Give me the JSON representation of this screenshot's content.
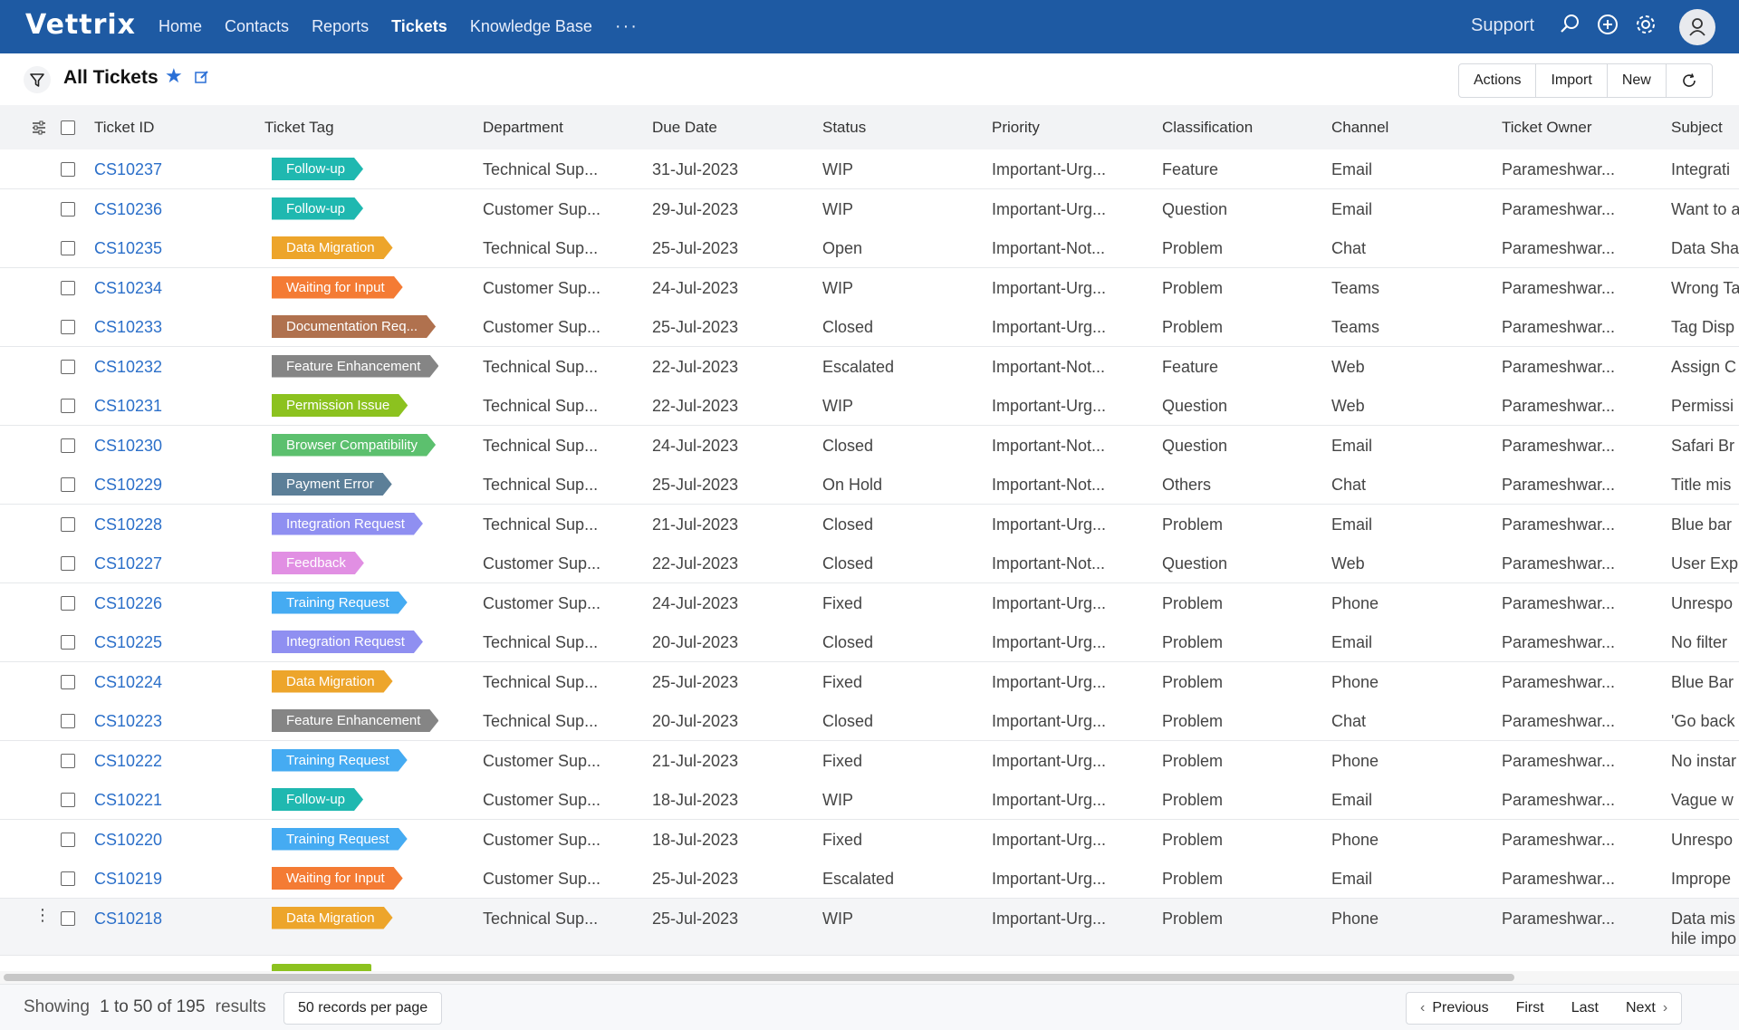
{
  "app": {
    "logo": "Vettrix",
    "support_label": "Support"
  },
  "nav": {
    "items": [
      "Home",
      "Contacts",
      "Reports",
      "Tickets",
      "Knowledge Base"
    ],
    "more": "···",
    "active": "Tickets"
  },
  "view": {
    "title": "All Tickets"
  },
  "toolbar": {
    "actions": "Actions",
    "import": "Import",
    "new": "New"
  },
  "columns": [
    "Ticket ID",
    "Ticket Tag",
    "Department",
    "Due Date",
    "Status",
    "Priority",
    "Classification",
    "Channel",
    "Ticket Owner",
    "Subject"
  ],
  "colors": {
    "Follow-up": "#1fb8b0",
    "Data Migration": "#eda52b",
    "Waiting for Input": "#f47b34",
    "Documentation Req...": "#b0714e",
    "Feature Enhancement": "#858585",
    "Permission Issue": "#8cc21f",
    "Browser Compatibility": "#5cc06e",
    "Payment Error": "#5c7f98",
    "Integration Request": "#8f8ff1",
    "Feedback": "#e18fe3",
    "Training Request": "#45abf2"
  },
  "rows": [
    {
      "id": "CS10237",
      "tag": "Follow-up",
      "dept": "Technical Sup...",
      "due": "31-Jul-2023",
      "status": "WIP",
      "priority": "Important-Urg...",
      "cls": "Feature",
      "channel": "Email",
      "owner": "Parameshwar...",
      "subject": "Integrati"
    },
    {
      "id": "CS10236",
      "tag": "Follow-up",
      "dept": "Customer Sup...",
      "due": "29-Jul-2023",
      "status": "WIP",
      "priority": "Important-Urg...",
      "cls": "Question",
      "channel": "Email",
      "owner": "Parameshwar...",
      "subject": "Want to a"
    },
    {
      "id": "CS10235",
      "tag": "Data Migration",
      "dept": "Technical Sup...",
      "due": "25-Jul-2023",
      "status": "Open",
      "priority": "Important-Not...",
      "cls": "Problem",
      "channel": "Chat",
      "owner": "Parameshwar...",
      "subject": "Data Sha"
    },
    {
      "id": "CS10234",
      "tag": "Waiting for Input",
      "dept": "Customer Sup...",
      "due": "24-Jul-2023",
      "status": "WIP",
      "priority": "Important-Urg...",
      "cls": "Problem",
      "channel": "Teams",
      "owner": "Parameshwar...",
      "subject": "Wrong Ta"
    },
    {
      "id": "CS10233",
      "tag": "Documentation Req...",
      "dept": "Customer Sup...",
      "due": "25-Jul-2023",
      "status": "Closed",
      "priority": "Important-Urg...",
      "cls": "Problem",
      "channel": "Teams",
      "owner": "Parameshwar...",
      "subject": "Tag Disp"
    },
    {
      "id": "CS10232",
      "tag": "Feature Enhancement",
      "dept": "Technical Sup...",
      "due": "22-Jul-2023",
      "status": "Escalated",
      "priority": "Important-Not...",
      "cls": "Feature",
      "channel": "Web",
      "owner": "Parameshwar...",
      "subject": "Assign C"
    },
    {
      "id": "CS10231",
      "tag": "Permission Issue",
      "dept": "Technical Sup...",
      "due": "22-Jul-2023",
      "status": "WIP",
      "priority": "Important-Urg...",
      "cls": "Question",
      "channel": "Web",
      "owner": "Parameshwar...",
      "subject": "Permissi"
    },
    {
      "id": "CS10230",
      "tag": "Browser Compatibility",
      "dept": "Technical Sup...",
      "due": "24-Jul-2023",
      "status": "Closed",
      "priority": "Important-Not...",
      "cls": "Question",
      "channel": "Email",
      "owner": "Parameshwar...",
      "subject": "Safari Br"
    },
    {
      "id": "CS10229",
      "tag": "Payment Error",
      "dept": "Technical Sup...",
      "due": "25-Jul-2023",
      "status": "On Hold",
      "priority": "Important-Not...",
      "cls": "Others",
      "channel": "Chat",
      "owner": "Parameshwar...",
      "subject": "Title mis"
    },
    {
      "id": "CS10228",
      "tag": "Integration Request",
      "dept": "Technical Sup...",
      "due": "21-Jul-2023",
      "status": "Closed",
      "priority": "Important-Urg...",
      "cls": "Problem",
      "channel": "Email",
      "owner": "Parameshwar...",
      "subject": "Blue bar"
    },
    {
      "id": "CS10227",
      "tag": "Feedback",
      "dept": "Customer Sup...",
      "due": "22-Jul-2023",
      "status": "Closed",
      "priority": "Important-Not...",
      "cls": "Question",
      "channel": "Web",
      "owner": "Parameshwar...",
      "subject": "User Exp"
    },
    {
      "id": "CS10226",
      "tag": "Training Request",
      "dept": "Customer Sup...",
      "due": "24-Jul-2023",
      "status": "Fixed",
      "priority": "Important-Urg...",
      "cls": "Problem",
      "channel": "Phone",
      "owner": "Parameshwar...",
      "subject": "Unrespo"
    },
    {
      "id": "CS10225",
      "tag": "Integration Request",
      "dept": "Technical Sup...",
      "due": "20-Jul-2023",
      "status": "Closed",
      "priority": "Important-Urg...",
      "cls": "Problem",
      "channel": "Email",
      "owner": "Parameshwar...",
      "subject": "No filter"
    },
    {
      "id": "CS10224",
      "tag": "Data Migration",
      "dept": "Technical Sup...",
      "due": "25-Jul-2023",
      "status": "Fixed",
      "priority": "Important-Urg...",
      "cls": "Problem",
      "channel": "Phone",
      "owner": "Parameshwar...",
      "subject": "Blue Bar"
    },
    {
      "id": "CS10223",
      "tag": "Feature Enhancement",
      "dept": "Technical Sup...",
      "due": "20-Jul-2023",
      "status": "Closed",
      "priority": "Important-Urg...",
      "cls": "Problem",
      "channel": "Chat",
      "owner": "Parameshwar...",
      "subject": "'Go back"
    },
    {
      "id": "CS10222",
      "tag": "Training Request",
      "dept": "Customer Sup...",
      "due": "21-Jul-2023",
      "status": "Fixed",
      "priority": "Important-Urg...",
      "cls": "Problem",
      "channel": "Phone",
      "owner": "Parameshwar...",
      "subject": "No instar"
    },
    {
      "id": "CS10221",
      "tag": "Follow-up",
      "dept": "Customer Sup...",
      "due": "18-Jul-2023",
      "status": "WIP",
      "priority": "Important-Urg...",
      "cls": "Problem",
      "channel": "Email",
      "owner": "Parameshwar...",
      "subject": "Vague w"
    },
    {
      "id": "CS10220",
      "tag": "Training Request",
      "dept": "Customer Sup...",
      "due": "18-Jul-2023",
      "status": "Fixed",
      "priority": "Important-Urg...",
      "cls": "Problem",
      "channel": "Phone",
      "owner": "Parameshwar...",
      "subject": "Unrespo"
    },
    {
      "id": "CS10219",
      "tag": "Waiting for Input",
      "dept": "Customer Sup...",
      "due": "25-Jul-2023",
      "status": "Escalated",
      "priority": "Important-Urg...",
      "cls": "Problem",
      "channel": "Email",
      "owner": "Parameshwar...",
      "subject": "Imprope"
    },
    {
      "id": "CS10218",
      "tag": "Data Migration",
      "dept": "Technical Sup...",
      "due": "25-Jul-2023",
      "status": "WIP",
      "priority": "Important-Urg...",
      "cls": "Problem",
      "channel": "Phone",
      "owner": "Parameshwar...",
      "subject": "Data mis",
      "subject2": "hile impo"
    }
  ],
  "footer": {
    "showing_prefix": "Showing",
    "range": "1 to 50 of 195",
    "showing_suffix": "results",
    "per_page": "50 records per page",
    "previous": "Previous",
    "first": "First",
    "last": "Last",
    "next": "Next"
  }
}
